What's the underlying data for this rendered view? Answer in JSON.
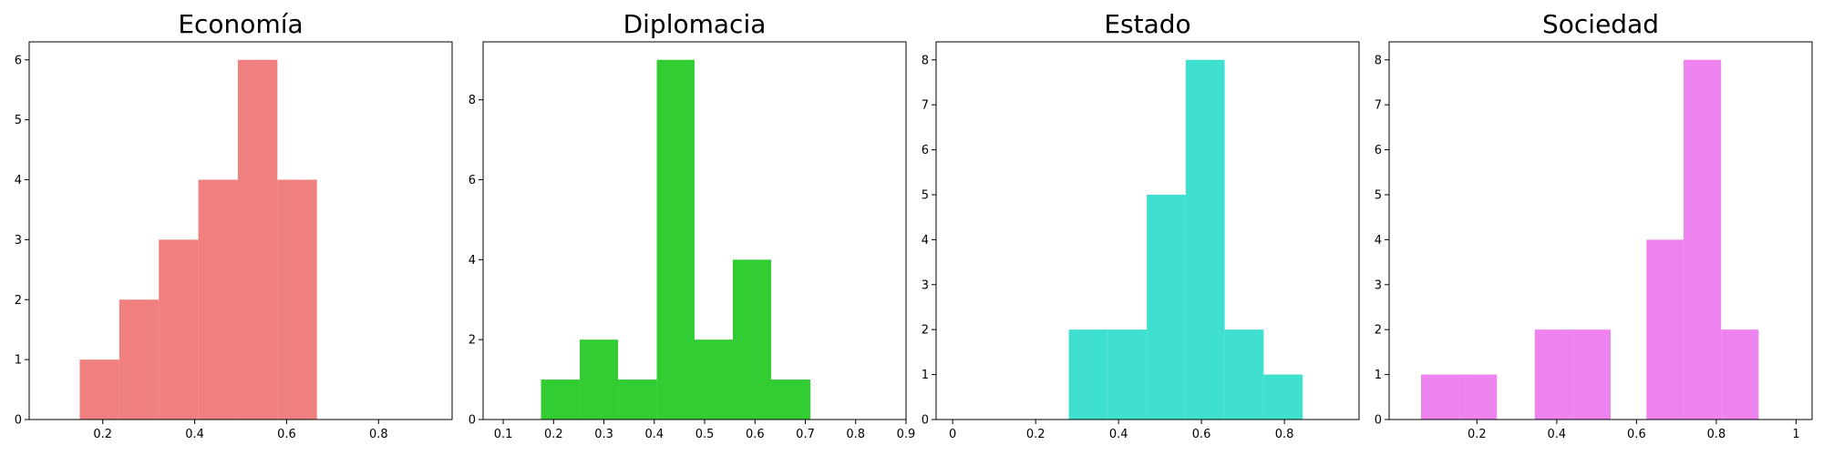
{
  "chart_data": [
    {
      "type": "bar",
      "title": "Economía",
      "color": "#f08080",
      "xlim": [
        0.04,
        0.96
      ],
      "ylim": [
        0,
        6.3
      ],
      "xticks": [
        0.2,
        0.4,
        0.6,
        0.8
      ],
      "yticks": [
        0,
        1,
        2,
        3,
        4,
        5,
        6
      ],
      "bins": [
        {
          "x0": 0.15,
          "x1": 0.236,
          "count": 1
        },
        {
          "x0": 0.236,
          "x1": 0.322,
          "count": 2
        },
        {
          "x0": 0.322,
          "x1": 0.408,
          "count": 3
        },
        {
          "x0": 0.408,
          "x1": 0.494,
          "count": 4
        },
        {
          "x0": 0.494,
          "x1": 0.58,
          "count": 6
        },
        {
          "x0": 0.58,
          "x1": 0.666,
          "count": 4
        }
      ]
    },
    {
      "type": "bar",
      "title": "Diplomacia",
      "color": "#32cd32",
      "xlim": [
        0.06,
        0.9
      ],
      "ylim": [
        0,
        9.45
      ],
      "xticks": [
        0.1,
        0.2,
        0.3,
        0.4,
        0.5,
        0.6,
        0.7,
        0.8,
        0.9
      ],
      "yticks": [
        0,
        2,
        4,
        6,
        8
      ],
      "bins": [
        {
          "x0": 0.175,
          "x1": 0.252,
          "count": 1
        },
        {
          "x0": 0.252,
          "x1": 0.328,
          "count": 2
        },
        {
          "x0": 0.328,
          "x1": 0.405,
          "count": 1
        },
        {
          "x0": 0.405,
          "x1": 0.48,
          "count": 9
        },
        {
          "x0": 0.48,
          "x1": 0.556,
          "count": 2
        },
        {
          "x0": 0.556,
          "x1": 0.632,
          "count": 4
        },
        {
          "x0": 0.632,
          "x1": 0.71,
          "count": 1
        }
      ]
    },
    {
      "type": "bar",
      "title": "Estado",
      "color": "#40e0d0",
      "xlim": [
        -0.04,
        0.98
      ],
      "ylim": [
        0,
        8.4
      ],
      "xticks": [
        0.0,
        0.2,
        0.4,
        0.6,
        0.8
      ],
      "yticks": [
        0,
        1,
        2,
        3,
        4,
        5,
        6,
        7,
        8
      ],
      "bins": [
        {
          "x0": 0.28,
          "x1": 0.374,
          "count": 2
        },
        {
          "x0": 0.374,
          "x1": 0.468,
          "count": 2
        },
        {
          "x0": 0.468,
          "x1": 0.562,
          "count": 5
        },
        {
          "x0": 0.562,
          "x1": 0.656,
          "count": 8
        },
        {
          "x0": 0.656,
          "x1": 0.75,
          "count": 2
        },
        {
          "x0": 0.75,
          "x1": 0.844,
          "count": 1
        }
      ]
    },
    {
      "type": "bar",
      "title": "Sociedad",
      "color": "#ee82ee",
      "xlim": [
        -0.02,
        1.04
      ],
      "ylim": [
        0,
        8.4
      ],
      "xticks": [
        0.2,
        0.4,
        0.6,
        0.8,
        1.0
      ],
      "yticks": [
        0,
        1,
        2,
        3,
        4,
        5,
        6,
        7,
        8
      ],
      "bins": [
        {
          "x0": 0.06,
          "x1": 0.155,
          "count": 1
        },
        {
          "x0": 0.155,
          "x1": 0.25,
          "count": 1
        },
        {
          "x0": 0.25,
          "x1": 0.345,
          "count": 0
        },
        {
          "x0": 0.345,
          "x1": 0.44,
          "count": 2
        },
        {
          "x0": 0.44,
          "x1": 0.535,
          "count": 2
        },
        {
          "x0": 0.535,
          "x1": 0.625,
          "count": 0
        },
        {
          "x0": 0.625,
          "x1": 0.718,
          "count": 4
        },
        {
          "x0": 0.718,
          "x1": 0.812,
          "count": 8
        },
        {
          "x0": 0.812,
          "x1": 0.906,
          "count": 2
        }
      ]
    }
  ]
}
